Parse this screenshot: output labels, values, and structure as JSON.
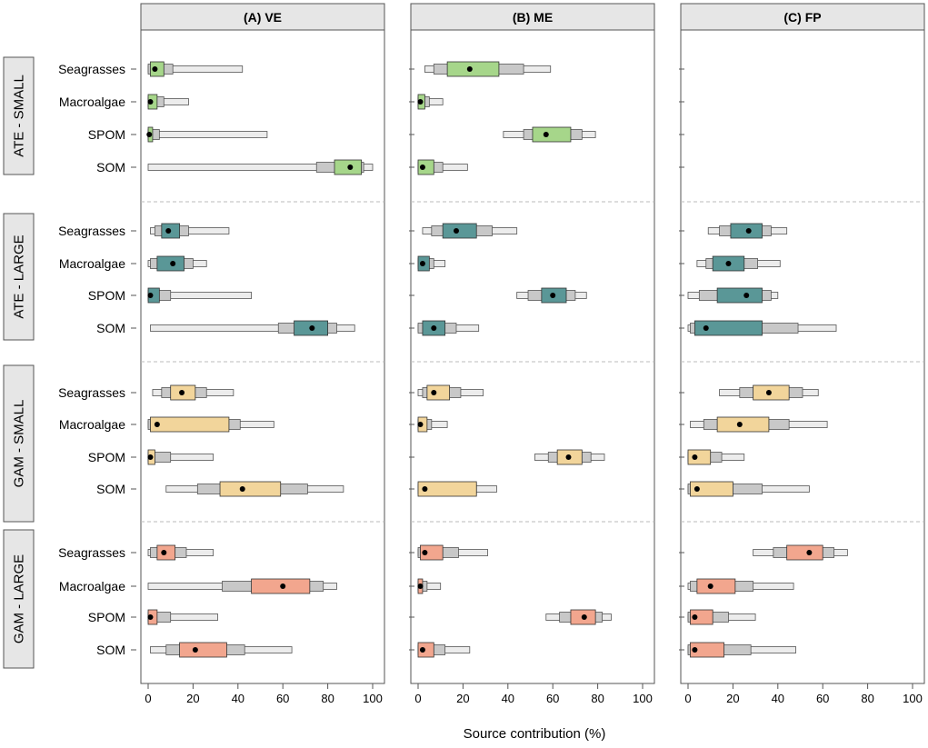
{
  "chart_data": {
    "type": "box",
    "xlabel": "Source contribution (%)",
    "xlim": [
      0,
      100
    ],
    "xticks": [
      "0",
      "20",
      "40",
      "60",
      "80",
      "100"
    ],
    "sources": [
      "Seagrasses",
      "Macroalgae",
      "SPOM",
      "SOM"
    ],
    "colors": {
      "ATE - SMALL": "#a6d68a",
      "ATE - LARGE": "#5a9797",
      "GAM - SMALL": "#f2d59b",
      "GAM - LARGE": "#f2a68e",
      "mid_interval": "#c8c8c8",
      "outer_interval": "#ececec"
    },
    "panels": [
      {
        "label": "(A) VE",
        "groups": [
          {
            "name": "ATE - SMALL",
            "sources": [
              {
                "source": "Seagrasses",
                "median": 3,
                "ci50": [
                  1,
                  7
                ],
                "ci75": [
                  0,
                  11
                ],
                "ci95": [
                  0,
                  42
                ]
              },
              {
                "source": "Macroalgae",
                "median": 1,
                "ci50": [
                  0,
                  4
                ],
                "ci75": [
                  0,
                  7
                ],
                "ci95": [
                  0,
                  18
                ]
              },
              {
                "source": "SPOM",
                "median": 0.5,
                "ci50": [
                  0,
                  2
                ],
                "ci75": [
                  0,
                  5
                ],
                "ci95": [
                  0,
                  53
                ]
              },
              {
                "source": "SOM",
                "median": 90,
                "ci50": [
                  83,
                  95
                ],
                "ci75": [
                  75,
                  96
                ],
                "ci95": [
                  0,
                  100
                ]
              }
            ]
          },
          {
            "name": "ATE - LARGE",
            "sources": [
              {
                "source": "Seagrasses",
                "median": 9,
                "ci50": [
                  6,
                  14
                ],
                "ci75": [
                  3,
                  18
                ],
                "ci95": [
                  1,
                  36
                ]
              },
              {
                "source": "Macroalgae",
                "median": 11,
                "ci50": [
                  4,
                  16
                ],
                "ci75": [
                  1,
                  20
                ],
                "ci95": [
                  0,
                  26
                ]
              },
              {
                "source": "SPOM",
                "median": 1,
                "ci50": [
                  0,
                  5
                ],
                "ci75": [
                  0,
                  10
                ],
                "ci95": [
                  0,
                  46
                ]
              },
              {
                "source": "SOM",
                "median": 73,
                "ci50": [
                  65,
                  80
                ],
                "ci75": [
                  58,
                  84
                ],
                "ci95": [
                  1,
                  92
                ]
              }
            ]
          },
          {
            "name": "GAM - SMALL",
            "sources": [
              {
                "source": "Seagrasses",
                "median": 15,
                "ci50": [
                  10,
                  21
                ],
                "ci75": [
                  6,
                  26
                ],
                "ci95": [
                  2,
                  38
                ]
              },
              {
                "source": "Macroalgae",
                "median": 4,
                "ci50": [
                  1,
                  36
                ],
                "ci75": [
                  0,
                  41
                ],
                "ci95": [
                  0,
                  56
                ]
              },
              {
                "source": "SPOM",
                "median": 1,
                "ci50": [
                  0,
                  3
                ],
                "ci75": [
                  0,
                  10
                ],
                "ci95": [
                  0,
                  29
                ]
              },
              {
                "source": "SOM",
                "median": 42,
                "ci50": [
                  32,
                  59
                ],
                "ci75": [
                  22,
                  71
                ],
                "ci95": [
                  8,
                  87
                ]
              }
            ]
          },
          {
            "name": "GAM - LARGE",
            "sources": [
              {
                "source": "Seagrasses",
                "median": 7,
                "ci50": [
                  4,
                  12
                ],
                "ci75": [
                  1,
                  17
                ],
                "ci95": [
                  0,
                  29
                ]
              },
              {
                "source": "Macroalgae",
                "median": 60,
                "ci50": [
                  46,
                  72
                ],
                "ci75": [
                  33,
                  78
                ],
                "ci95": [
                  0,
                  84
                ]
              },
              {
                "source": "SPOM",
                "median": 1,
                "ci50": [
                  0,
                  4
                ],
                "ci75": [
                  0,
                  10
                ],
                "ci95": [
                  0,
                  31
                ]
              },
              {
                "source": "SOM",
                "median": 21,
                "ci50": [
                  14,
                  35
                ],
                "ci75": [
                  8,
                  43
                ],
                "ci95": [
                  1,
                  64
                ]
              }
            ]
          }
        ]
      },
      {
        "label": "(B) ME",
        "groups": [
          {
            "name": "ATE - SMALL",
            "sources": [
              {
                "source": "Seagrasses",
                "median": 23,
                "ci50": [
                  13,
                  36
                ],
                "ci75": [
                  7,
                  47
                ],
                "ci95": [
                  3,
                  59
                ]
              },
              {
                "source": "Macroalgae",
                "median": 1,
                "ci50": [
                  0,
                  3
                ],
                "ci75": [
                  0,
                  5
                ],
                "ci95": [
                  0,
                  11
                ]
              },
              {
                "source": "SPOM",
                "median": 57,
                "ci50": [
                  51,
                  68
                ],
                "ci75": [
                  47,
                  73
                ],
                "ci95": [
                  38,
                  79
                ]
              },
              {
                "source": "SOM",
                "median": 2,
                "ci50": [
                  0,
                  7
                ],
                "ci75": [
                  0,
                  11
                ],
                "ci95": [
                  0,
                  22
                ]
              }
            ]
          },
          {
            "name": "ATE - LARGE",
            "sources": [
              {
                "source": "Seagrasses",
                "median": 17,
                "ci50": [
                  11,
                  26
                ],
                "ci75": [
                  6,
                  33
                ],
                "ci95": [
                  2,
                  44
                ]
              },
              {
                "source": "Macroalgae",
                "median": 2,
                "ci50": [
                  0,
                  5
                ],
                "ci75": [
                  0,
                  7
                ],
                "ci95": [
                  0,
                  12
                ]
              },
              {
                "source": "SPOM",
                "median": 60,
                "ci50": [
                  55,
                  66
                ],
                "ci75": [
                  49,
                  70
                ],
                "ci95": [
                  44,
                  75
                ]
              },
              {
                "source": "SOM",
                "median": 7,
                "ci50": [
                  2,
                  12
                ],
                "ci75": [
                  0,
                  17
                ],
                "ci95": [
                  0,
                  27
                ]
              }
            ]
          },
          {
            "name": "GAM - SMALL",
            "sources": [
              {
                "source": "Seagrasses",
                "median": 7,
                "ci50": [
                  4,
                  14
                ],
                "ci75": [
                  2,
                  19
                ],
                "ci95": [
                  0,
                  29
                ]
              },
              {
                "source": "Macroalgae",
                "median": 1,
                "ci50": [
                  0,
                  4
                ],
                "ci75": [
                  0,
                  6
                ],
                "ci95": [
                  0,
                  13
                ]
              },
              {
                "source": "SPOM",
                "median": 67,
                "ci50": [
                  62,
                  73
                ],
                "ci75": [
                  58,
                  77
                ],
                "ci95": [
                  52,
                  83
                ]
              },
              {
                "source": "SOM",
                "median": 3,
                "ci50": [
                  0,
                  26
                ],
                "ci75": [
                  0,
                  26
                ],
                "ci95": [
                  0,
                  35
                ]
              }
            ]
          },
          {
            "name": "GAM - LARGE",
            "sources": [
              {
                "source": "Seagrasses",
                "median": 3,
                "ci50": [
                  1,
                  11
                ],
                "ci75": [
                  0,
                  18
                ],
                "ci95": [
                  0,
                  31
                ]
              },
              {
                "source": "Macroalgae",
                "median": 1,
                "ci50": [
                  0,
                  2
                ],
                "ci75": [
                  0,
                  4
                ],
                "ci95": [
                  0,
                  10
                ]
              },
              {
                "source": "SPOM",
                "median": 74,
                "ci50": [
                  68,
                  79
                ],
                "ci75": [
                  63,
                  82
                ],
                "ci95": [
                  57,
                  86
                ]
              },
              {
                "source": "SOM",
                "median": 2,
                "ci50": [
                  0,
                  7
                ],
                "ci75": [
                  0,
                  12
                ],
                "ci95": [
                  0,
                  23
                ]
              }
            ]
          }
        ]
      },
      {
        "label": "(C) FP",
        "groups": [
          {
            "name": "ATE - SMALL",
            "sources": []
          },
          {
            "name": "ATE - LARGE",
            "sources": [
              {
                "source": "Seagrasses",
                "median": 27,
                "ci50": [
                  19,
                  33
                ],
                "ci75": [
                  14,
                  37
                ],
                "ci95": [
                  9,
                  44
                ]
              },
              {
                "source": "Macroalgae",
                "median": 18,
                "ci50": [
                  11,
                  25
                ],
                "ci75": [
                  8,
                  31
                ],
                "ci95": [
                  4,
                  41
                ]
              },
              {
                "source": "SPOM",
                "median": 26,
                "ci50": [
                  13,
                  33
                ],
                "ci75": [
                  5,
                  37
                ],
                "ci95": [
                  0,
                  40
                ]
              },
              {
                "source": "SOM",
                "median": 8,
                "ci50": [
                  3,
                  33
                ],
                "ci75": [
                  1,
                  49
                ],
                "ci95": [
                  0,
                  66
                ]
              }
            ]
          },
          {
            "name": "GAM - SMALL",
            "sources": [
              {
                "source": "Seagrasses",
                "median": 36,
                "ci50": [
                  29,
                  45
                ],
                "ci75": [
                  23,
                  51
                ],
                "ci95": [
                  14,
                  58
                ]
              },
              {
                "source": "Macroalgae",
                "median": 23,
                "ci50": [
                  13,
                  36
                ],
                "ci75": [
                  7,
                  45
                ],
                "ci95": [
                  1,
                  62
                ]
              },
              {
                "source": "SPOM",
                "median": 3,
                "ci50": [
                  0,
                  10
                ],
                "ci75": [
                  0,
                  15
                ],
                "ci95": [
                  0,
                  25
                ]
              },
              {
                "source": "SOM",
                "median": 4,
                "ci50": [
                  1,
                  20
                ],
                "ci75": [
                  0,
                  33
                ],
                "ci95": [
                  0,
                  54
                ]
              }
            ]
          },
          {
            "name": "GAM - LARGE",
            "sources": [
              {
                "source": "Seagrasses",
                "median": 54,
                "ci50": [
                  44,
                  60
                ],
                "ci75": [
                  38,
                  65
                ],
                "ci95": [
                  29,
                  71
                ]
              },
              {
                "source": "Macroalgae",
                "median": 10,
                "ci50": [
                  4,
                  21
                ],
                "ci75": [
                  1,
                  29
                ],
                "ci95": [
                  0,
                  47
                ]
              },
              {
                "source": "SPOM",
                "median": 3,
                "ci50": [
                  1,
                  11
                ],
                "ci75": [
                  0,
                  18
                ],
                "ci95": [
                  0,
                  30
                ]
              },
              {
                "source": "SOM",
                "median": 3,
                "ci50": [
                  1,
                  16
                ],
                "ci75": [
                  0,
                  28
                ],
                "ci95": [
                  0,
                  48
                ]
              }
            ]
          }
        ]
      }
    ]
  }
}
